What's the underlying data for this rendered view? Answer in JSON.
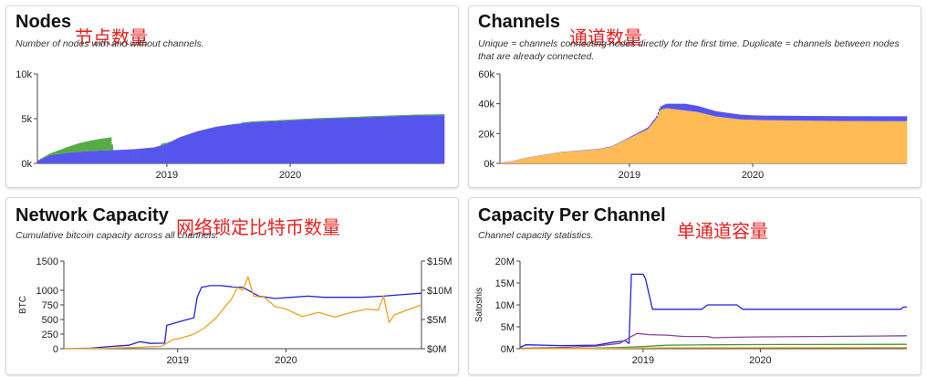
{
  "panels": {
    "nodes": {
      "title": "Nodes",
      "annotation": "节点数量",
      "subtitle": "Number of nodes with and without channels."
    },
    "channels": {
      "title": "Channels",
      "annotation": "通道数量",
      "subtitle": "Unique = channels connecting nodes directly for the first time. Duplicate = channels between nodes that are already connected."
    },
    "capacity": {
      "title": "Network Capacity",
      "annotation": "网络锁定比特币数量",
      "subtitle": "Cumulative bitcoin capacity across all channels."
    },
    "per_channel": {
      "title": "Capacity Per Channel",
      "annotation": "单通道容量",
      "subtitle": "Channel capacity statistics."
    }
  },
  "colors": {
    "blue": "#5555ee",
    "green": "#55aa44",
    "orange": "#ffbb55",
    "line_blue": "#2222dd",
    "line_orange": "#f0a020",
    "purple": "#884499",
    "dark_green": "#449944",
    "annotation_red": "#e8211f"
  },
  "chart_data": [
    {
      "id": "nodes",
      "type": "bar",
      "stacked": true,
      "x_ticks": [
        "2019",
        "2020"
      ],
      "x_tick_values": [
        2019.0,
        2020.0
      ],
      "xlim": [
        2017.95,
        2021.25
      ],
      "ylim": [
        0,
        10000
      ],
      "y_ticks": [
        "0k",
        "5k",
        "10k"
      ],
      "y_tick_values": [
        0,
        5000,
        10000
      ],
      "series": [
        {
          "color": "blue",
          "points": [
            [
              2017.95,
              300
            ],
            [
              2018.05,
              900
            ],
            [
              2018.2,
              1200
            ],
            [
              2018.4,
              1400
            ],
            [
              2018.6,
              1500
            ],
            [
              2018.75,
              1600
            ],
            [
              2018.9,
              1800
            ],
            [
              2019.0,
              2200
            ],
            [
              2019.1,
              2900
            ],
            [
              2019.25,
              3600
            ],
            [
              2019.4,
              4100
            ],
            [
              2019.55,
              4400
            ],
            [
              2019.7,
              4600
            ],
            [
              2019.85,
              4700
            ],
            [
              2020.0,
              4800
            ],
            [
              2020.2,
              4950
            ],
            [
              2020.4,
              5050
            ],
            [
              2020.6,
              5150
            ],
            [
              2020.8,
              5250
            ],
            [
              2021.0,
              5350
            ],
            [
              2021.25,
              5400
            ]
          ]
        },
        {
          "color": "green",
          "points": [
            [
              2017.95,
              0
            ],
            [
              2018.05,
              200
            ],
            [
              2018.15,
              500
            ],
            [
              2018.3,
              1000
            ],
            [
              2018.45,
              1300
            ],
            [
              2018.55,
              1450
            ],
            [
              2018.56,
              0
            ],
            [
              2018.95,
              0
            ],
            [
              2018.96,
              200
            ],
            [
              2019.05,
              0
            ],
            [
              2019.6,
              0
            ],
            [
              2019.61,
              100
            ],
            [
              2021.25,
              100
            ]
          ]
        }
      ]
    },
    {
      "id": "channels",
      "type": "bar",
      "stacked": true,
      "x_ticks": [
        "2019",
        "2020"
      ],
      "x_tick_values": [
        2019.0,
        2020.0
      ],
      "xlim": [
        2017.95,
        2021.25
      ],
      "ylim": [
        0,
        60000
      ],
      "y_ticks": [
        "0k",
        "20k",
        "40k",
        "60k"
      ],
      "y_tick_values": [
        0,
        20000,
        40000,
        60000
      ],
      "series": [
        {
          "color": "orange",
          "points": [
            [
              2017.95,
              500
            ],
            [
              2018.05,
              1500
            ],
            [
              2018.15,
              3500
            ],
            [
              2018.3,
              5500
            ],
            [
              2018.45,
              7500
            ],
            [
              2018.6,
              8500
            ],
            [
              2018.75,
              9500
            ],
            [
              2018.85,
              11000
            ],
            [
              2018.95,
              15000
            ],
            [
              2019.05,
              19000
            ],
            [
              2019.15,
              23000
            ],
            [
              2019.22,
              30000
            ],
            [
              2019.25,
              36000
            ],
            [
              2019.3,
              37000
            ],
            [
              2019.4,
              36000
            ],
            [
              2019.55,
              34500
            ],
            [
              2019.7,
              31500
            ],
            [
              2019.9,
              29500
            ],
            [
              2020.1,
              29000
            ],
            [
              2020.3,
              28800
            ],
            [
              2020.5,
              28600
            ],
            [
              2020.8,
              28400
            ],
            [
              2021.25,
              28300
            ]
          ]
        },
        {
          "color": "blue",
          "points": [
            [
              2017.95,
              100
            ],
            [
              2018.9,
              300
            ],
            [
              2019.0,
              500
            ],
            [
              2019.1,
              900
            ],
            [
              2019.22,
              1400
            ],
            [
              2019.3,
              3000
            ],
            [
              2019.45,
              4500
            ],
            [
              2019.7,
              3500
            ],
            [
              2020.0,
              3000
            ],
            [
              2020.5,
              3200
            ],
            [
              2021.25,
              3300
            ]
          ]
        }
      ]
    },
    {
      "id": "capacity",
      "type": "line",
      "x_ticks": [
        "2019",
        "2020"
      ],
      "x_tick_values": [
        2019.0,
        2020.0
      ],
      "xlim": [
        2017.95,
        2021.25
      ],
      "ylim": [
        0,
        1500
      ],
      "y_ticks": [
        "0",
        "250",
        "500",
        "750",
        "1000",
        "1500"
      ],
      "y_tick_values": [
        0,
        250,
        500,
        750,
        1000,
        1500
      ],
      "ylabel": "BTC",
      "y2lim": [
        0,
        15000000
      ],
      "y2_ticks": [
        "$0M",
        "$5M",
        "$10M",
        "$15M"
      ],
      "y2_tick_values": [
        0,
        5000000,
        10000000,
        15000000
      ],
      "series": [
        {
          "color": "line_blue",
          "axis": "left",
          "points": [
            [
              2017.95,
              0
            ],
            [
              2018.2,
              10
            ],
            [
              2018.4,
              40
            ],
            [
              2018.55,
              60
            ],
            [
              2018.65,
              120
            ],
            [
              2018.75,
              90
            ],
            [
              2018.88,
              95
            ],
            [
              2018.9,
              400
            ],
            [
              2019.05,
              480
            ],
            [
              2019.15,
              530
            ],
            [
              2019.18,
              880
            ],
            [
              2019.22,
              1050
            ],
            [
              2019.3,
              1080
            ],
            [
              2019.4,
              1080
            ],
            [
              2019.5,
              1060
            ],
            [
              2019.6,
              1050
            ],
            [
              2019.75,
              900
            ],
            [
              2019.9,
              860
            ],
            [
              2020.05,
              880
            ],
            [
              2020.2,
              900
            ],
            [
              2020.35,
              880
            ],
            [
              2020.5,
              880
            ],
            [
              2020.7,
              880
            ],
            [
              2020.9,
              900
            ],
            [
              2021.1,
              930
            ],
            [
              2021.25,
              950
            ]
          ]
        },
        {
          "color": "line_orange",
          "axis": "right",
          "points": [
            [
              2017.95,
              0
            ],
            [
              2018.3,
              60000
            ],
            [
              2018.6,
              200000
            ],
            [
              2018.85,
              400000
            ],
            [
              2018.95,
              1500000
            ],
            [
              2019.05,
              1900000
            ],
            [
              2019.15,
              2500000
            ],
            [
              2019.25,
              3600000
            ],
            [
              2019.35,
              5200000
            ],
            [
              2019.5,
              8600000
            ],
            [
              2019.55,
              10500000
            ],
            [
              2019.6,
              10000000
            ],
            [
              2019.65,
              12300000
            ],
            [
              2019.7,
              9000000
            ],
            [
              2019.8,
              8800000
            ],
            [
              2019.9,
              7200000
            ],
            [
              2020.0,
              6800000
            ],
            [
              2020.15,
              5500000
            ],
            [
              2020.3,
              6200000
            ],
            [
              2020.45,
              5400000
            ],
            [
              2020.6,
              6200000
            ],
            [
              2020.75,
              6800000
            ],
            [
              2020.85,
              6600000
            ],
            [
              2020.9,
              9000000
            ],
            [
              2020.95,
              4500000
            ],
            [
              2021.0,
              5800000
            ],
            [
              2021.1,
              6500000
            ],
            [
              2021.25,
              7500000
            ]
          ]
        }
      ]
    },
    {
      "id": "per_channel",
      "type": "line",
      "x_ticks": [
        "2019",
        "2020"
      ],
      "x_tick_values": [
        2019.0,
        2020.0
      ],
      "xlim": [
        2017.95,
        2021.25
      ],
      "ylim": [
        0,
        20000000
      ],
      "y_ticks": [
        "0M",
        "5M",
        "10M",
        "15M",
        "20M"
      ],
      "y_tick_values": [
        0,
        5000000,
        10000000,
        15000000,
        20000000
      ],
      "ylabel": "Satoshis",
      "series": [
        {
          "color": "line_blue",
          "points": [
            [
              2017.95,
              300000
            ],
            [
              2018.0,
              900000
            ],
            [
              2018.3,
              700000
            ],
            [
              2018.6,
              800000
            ],
            [
              2018.75,
              1500000
            ],
            [
              2018.85,
              1800000
            ],
            [
              2018.88,
              1200000
            ],
            [
              2018.9,
              17000000
            ],
            [
              2019.0,
              17000000
            ],
            [
              2019.02,
              16000000
            ],
            [
              2019.08,
              9000000
            ],
            [
              2019.3,
              9000000
            ],
            [
              2019.5,
              9000000
            ],
            [
              2019.55,
              10000000
            ],
            [
              2019.8,
              10000000
            ],
            [
              2019.85,
              9000000
            ],
            [
              2021.2,
              9000000
            ],
            [
              2021.22,
              9500000
            ],
            [
              2021.25,
              9500000
            ]
          ]
        },
        {
          "color": "purple",
          "points": [
            [
              2017.95,
              100000
            ],
            [
              2018.3,
              300000
            ],
            [
              2018.6,
              600000
            ],
            [
              2018.8,
              1200000
            ],
            [
              2018.9,
              2800000
            ],
            [
              2018.95,
              3500000
            ],
            [
              2019.05,
              3200000
            ],
            [
              2019.2,
              3100000
            ],
            [
              2019.35,
              2800000
            ],
            [
              2019.55,
              2800000
            ],
            [
              2019.6,
              2500000
            ],
            [
              2019.75,
              2600000
            ],
            [
              2020.0,
              2700000
            ],
            [
              2020.5,
              2800000
            ],
            [
              2021.0,
              2900000
            ],
            [
              2021.25,
              2950000
            ]
          ]
        },
        {
          "color": "dark_green",
          "points": [
            [
              2017.95,
              0
            ],
            [
              2018.5,
              100000
            ],
            [
              2018.8,
              300000
            ],
            [
              2019.0,
              500000
            ],
            [
              2019.2,
              800000
            ],
            [
              2019.6,
              900000
            ],
            [
              2020.2,
              950000
            ],
            [
              2021.25,
              1000000
            ]
          ]
        },
        {
          "color": "line_orange",
          "points": [
            [
              2017.95,
              0
            ],
            [
              2018.8,
              100000
            ],
            [
              2019.2,
              200000
            ],
            [
              2021.25,
              250000
            ]
          ]
        }
      ]
    }
  ]
}
